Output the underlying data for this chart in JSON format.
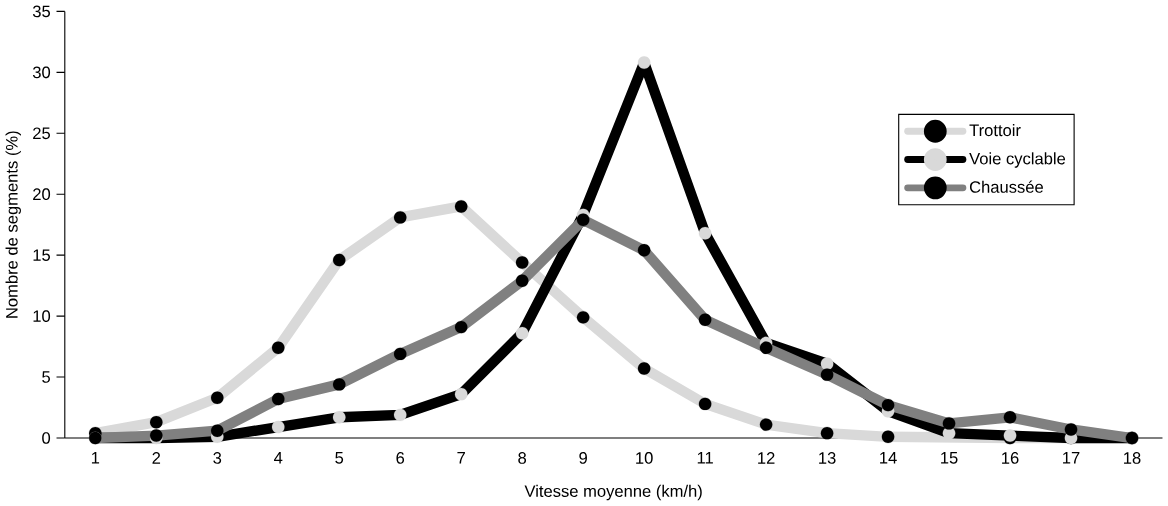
{
  "chart_data": {
    "type": "line",
    "xlabel": "Vitesse moyenne (km/h)",
    "ylabel": "Nombre de segments (%)",
    "categories": [
      "1",
      "2",
      "3",
      "4",
      "5",
      "6",
      "7",
      "8",
      "9",
      "10",
      "11",
      "12",
      "13",
      "14",
      "15",
      "16",
      "17",
      "18"
    ],
    "series": [
      {
        "name": "Trottoir",
        "color": "#d9d9d9",
        "values": [
          0.4,
          1.3,
          3.3,
          7.4,
          14.6,
          18.1,
          19.0,
          14.4,
          9.9,
          5.7,
          2.8,
          1.1,
          0.4,
          0.1,
          null,
          0,
          0,
          0
        ]
      },
      {
        "name": "Voie cyclable",
        "color": "#000000",
        "values": [
          0,
          0,
          0.1,
          0.9,
          1.7,
          1.9,
          3.6,
          8.6,
          18.3,
          30.8,
          16.8,
          7.8,
          6.1,
          2.2,
          0.4,
          0.2,
          0,
          0
        ]
      },
      {
        "name": "Chaussée",
        "color": "#808080",
        "values": [
          0,
          0.2,
          0.6,
          3.2,
          4.4,
          6.9,
          9.1,
          12.9,
          17.9,
          15.4,
          9.7,
          7.4,
          5.2,
          2.7,
          1.2,
          1.7,
          0.7,
          0
        ]
      }
    ],
    "ylim": [
      0,
      35
    ],
    "yticks": [
      0,
      5,
      10,
      15,
      20,
      25,
      30,
      35
    ],
    "legend": "top right",
    "marker": "circle",
    "line_style": "solid",
    "grid": false
  }
}
